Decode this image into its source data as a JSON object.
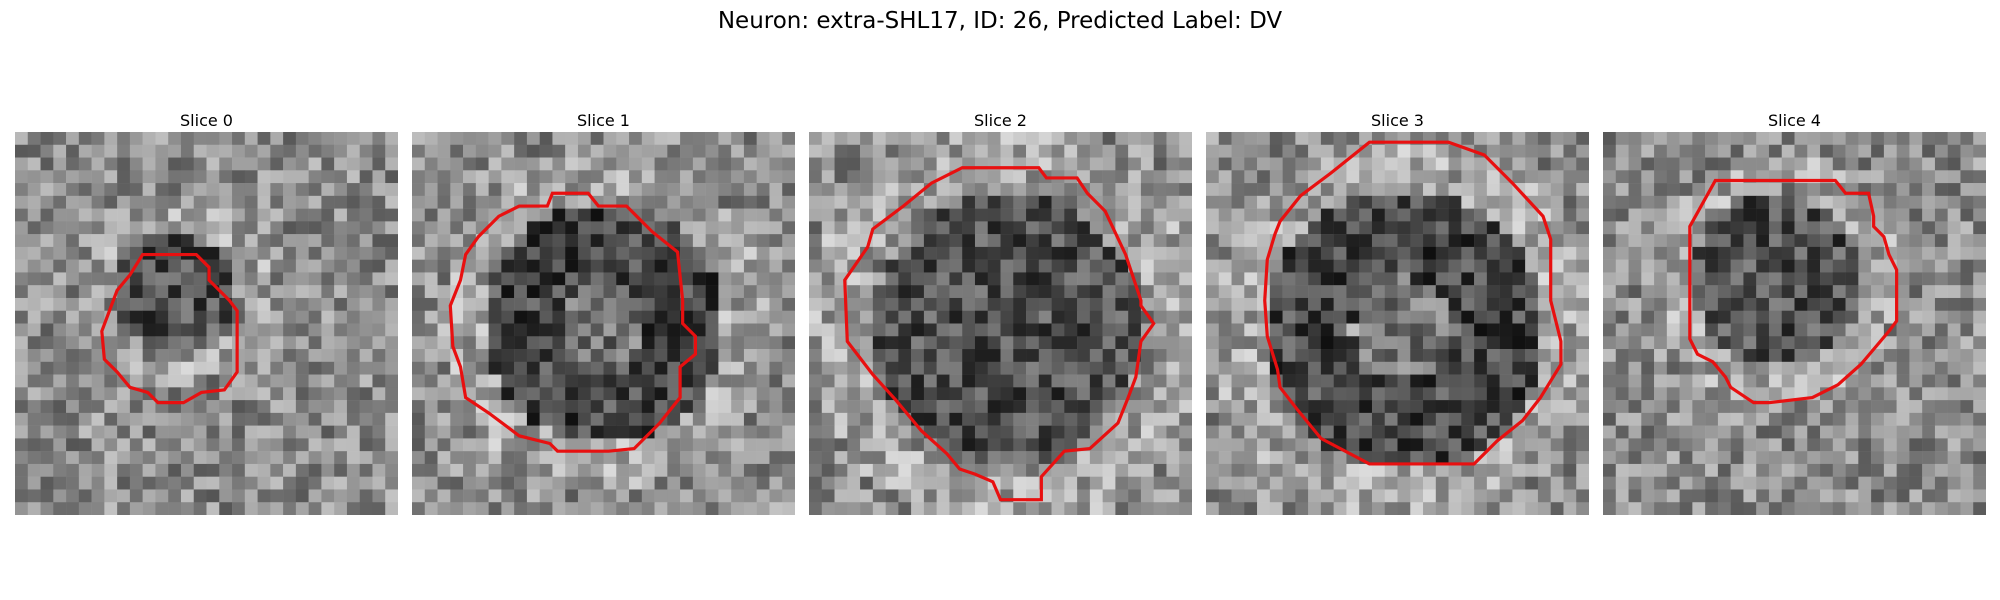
{
  "figure": {
    "title": "Neuron: extra-SHL17, ID: 26, Predicted Label: DV"
  },
  "panels": [
    {
      "title": "Slice 0",
      "seed": 11,
      "contour_color": "#e81010"
    },
    {
      "title": "Slice 1",
      "seed": 23,
      "contour_color": "#e81010"
    },
    {
      "title": "Slice 2",
      "seed": 37,
      "contour_color": "#e81010"
    },
    {
      "title": "Slice 3",
      "seed": 41,
      "contour_color": "#e81010"
    },
    {
      "title": "Slice 4",
      "seed": 59,
      "contour_color": "#e81010"
    }
  ]
}
